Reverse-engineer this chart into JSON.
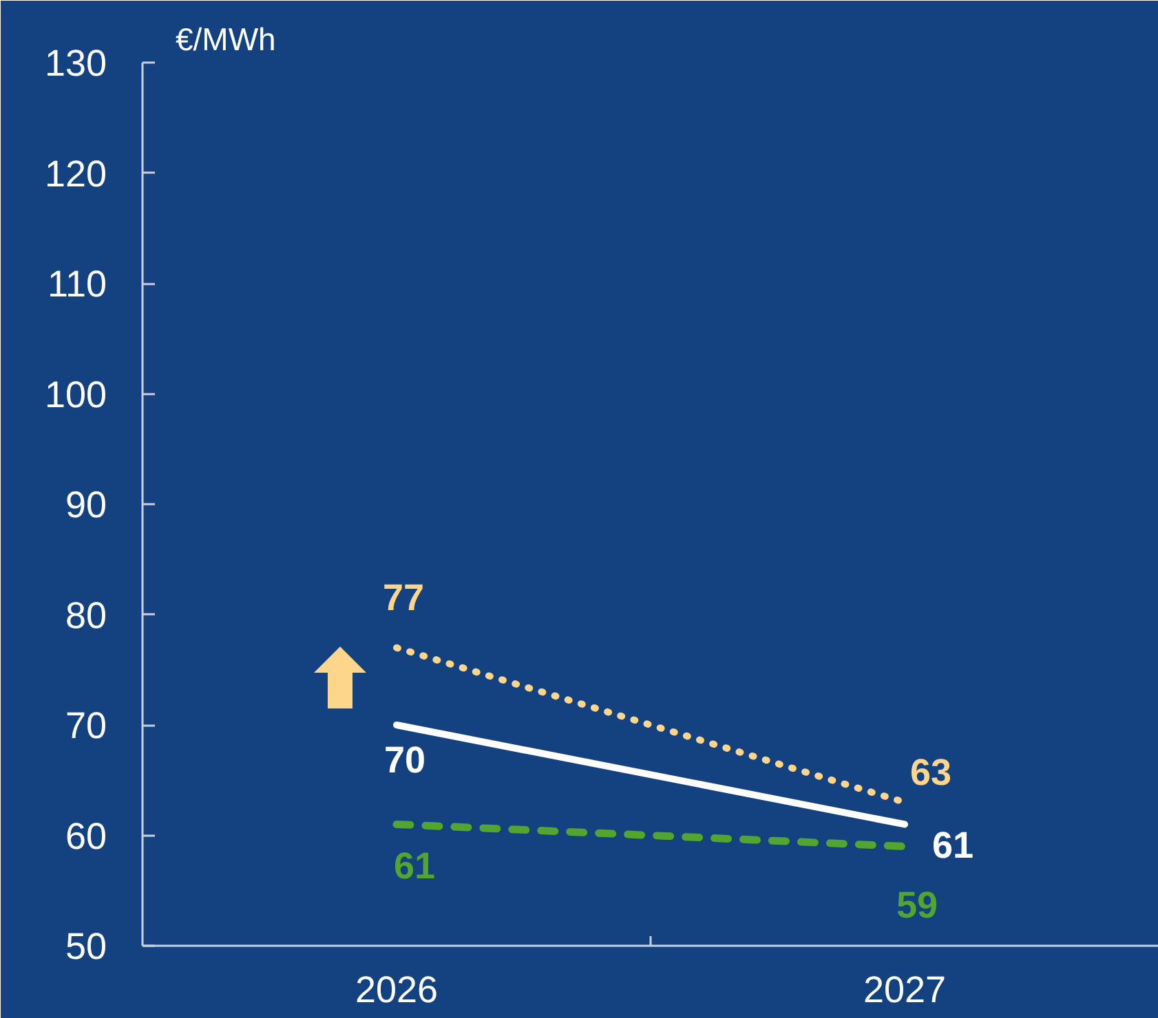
{
  "chart_data": {
    "type": "line",
    "ylabel": "€/MWh",
    "categories": [
      "2026",
      "2027"
    ],
    "series": [
      {
        "color": "#fdd58b",
        "line_style": "dotted",
        "values": [
          77,
          63
        ]
      },
      {
        "color": "#ffffff",
        "line_style": "solid",
        "values": [
          70,
          61
        ]
      },
      {
        "color": "#52a52e",
        "line_style": "dashed",
        "values": [
          61,
          59
        ]
      }
    ],
    "ylim": [
      50,
      130
    ],
    "yticks": [
      50,
      60,
      70,
      80,
      90,
      100,
      110,
      120,
      130
    ],
    "data_labels": true
  }
}
